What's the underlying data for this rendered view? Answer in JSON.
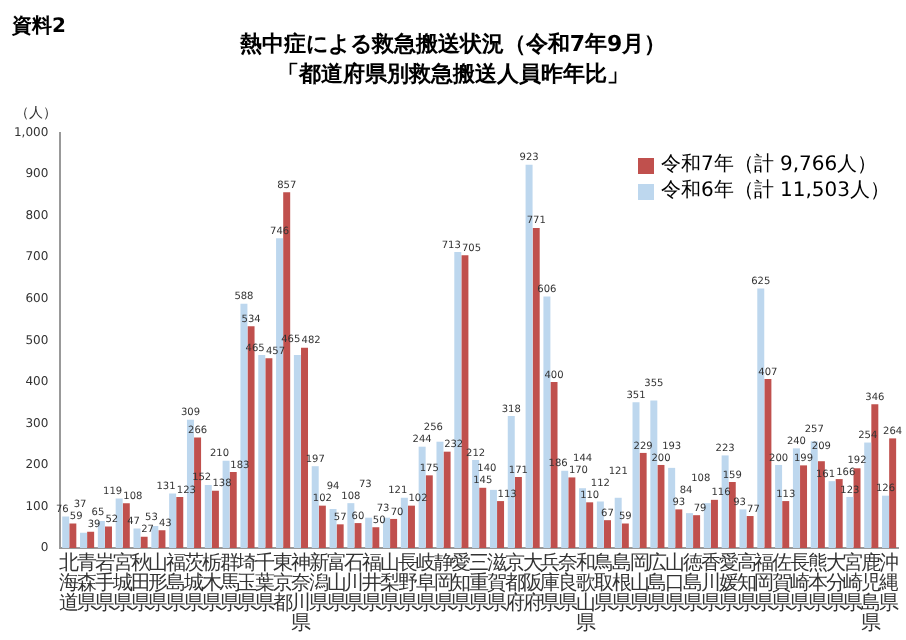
{
  "chart_data": {
    "type": "bar",
    "title": "熱中症による救急搬送状況（令和7年9月）",
    "subtitle": "「都道府県別救急搬送人員昨年比」",
    "ylabel": "（人）",
    "annotations": [
      "資料2"
    ],
    "categories": [
      "北海道",
      "青森県",
      "岩手県",
      "宮城県",
      "秋田県",
      "山形県",
      "福島県",
      "茨城県",
      "栃木県",
      "群馬県",
      "埼玉県",
      "千葉県",
      "東京都",
      "神奈川県",
      "新潟県",
      "富山県",
      "石川県",
      "福井県",
      "山梨県",
      "長野県",
      "岐阜県",
      "静岡県",
      "愛知県",
      "三重県",
      "滋賀県",
      "京都府",
      "大阪府",
      "兵庫県",
      "奈良県",
      "和歌山県",
      "鳥取県",
      "島根県",
      "岡山県",
      "広島県",
      "山口県",
      "徳島県",
      "香川県",
      "愛媛県",
      "高知県",
      "福岡県",
      "佐賀県",
      "長崎県",
      "熊本県",
      "大分県",
      "宮崎県",
      "鹿児島県",
      "沖縄県"
    ],
    "series": [
      {
        "name": "令和6年（計 11,503人）",
        "color": "#bdd7ee",
        "values": [
          76,
          37,
          65,
          119,
          47,
          53,
          131,
          309,
          152,
          210,
          588,
          465,
          746,
          465,
          197,
          94,
          108,
          73,
          73,
          121,
          244,
          256,
          713,
          212,
          140,
          318,
          923,
          606,
          186,
          144,
          112,
          121,
          351,
          355,
          193,
          84,
          108,
          223,
          93,
          625,
          200,
          240,
          257,
          161,
          123,
          254,
          126
        ]
      },
      {
        "name": "令和7年（計 9,766人）",
        "color": "#c0504d",
        "values": [
          59,
          39,
          52,
          108,
          27,
          43,
          123,
          266,
          138,
          183,
          534,
          457,
          857,
          482,
          102,
          57,
          60,
          50,
          70,
          102,
          175,
          232,
          705,
          145,
          113,
          171,
          771,
          400,
          170,
          110,
          67,
          59,
          229,
          200,
          93,
          79,
          116,
          159,
          77,
          407,
          113,
          199,
          209,
          166,
          192,
          346,
          264
        ]
      }
    ],
    "ylim": [
      0,
      1000
    ],
    "yticks": [
      0,
      {
        "value": 100,
        "label": "100"
      },
      200,
      300,
      400,
      500,
      600,
      700,
      800,
      900,
      {
        "value": 1000,
        "label": "1,000"
      }
    ],
    "grid": false,
    "legend": "top right",
    "data_labels": true
  }
}
